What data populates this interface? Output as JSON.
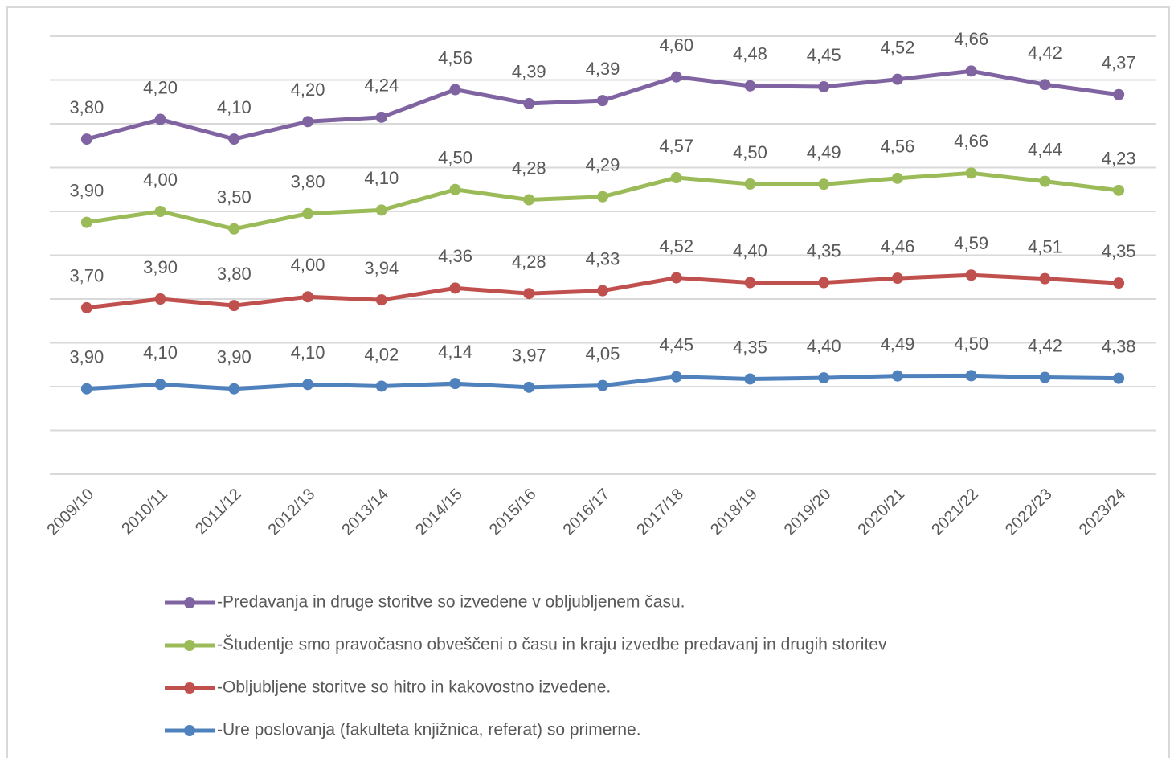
{
  "chart_data": {
    "type": "line",
    "stacked": true,
    "categories": [
      "2009/10",
      "2010/11",
      "2011/12",
      "2012/13",
      "2013/14",
      "2014/15",
      "2015/16",
      "2016/17",
      "2017/18",
      "2018/19",
      "2019/20",
      "2020/21",
      "2021/22",
      "2022/23",
      "2023/24"
    ],
    "ylim": [
      0,
      20
    ],
    "yticks": [
      0,
      2,
      4,
      6,
      8,
      10,
      12,
      14,
      16,
      18,
      20
    ],
    "show_ytick_labels": false,
    "grid": true,
    "legend": "bottom",
    "series": [
      {
        "name": "-Predavanja in druge storitve so izvedene v obljubljenem času.",
        "color": "#8064a2",
        "values": [
          3.8,
          4.2,
          4.1,
          4.2,
          4.24,
          4.56,
          4.39,
          4.39,
          4.6,
          4.48,
          4.45,
          4.52,
          4.66,
          4.42,
          4.37
        ],
        "value_labels": [
          "3,80",
          "4,20",
          "4,10",
          "4,20",
          "4,24",
          "4,56",
          "4,39",
          "4,39",
          "4,60",
          "4,48",
          "4,45",
          "4,52",
          "4,66",
          "4,42",
          "4,37"
        ]
      },
      {
        "name": "-Študentje smo pravočasno obveščeni o času in kraju izvedbe predavanj in drugih storitev",
        "color": "#9bbb59",
        "values": [
          3.9,
          4.0,
          3.5,
          3.8,
          4.1,
          4.5,
          4.28,
          4.29,
          4.57,
          4.5,
          4.49,
          4.56,
          4.66,
          4.44,
          4.23
        ],
        "value_labels": [
          "3,90",
          "4,00",
          "3,50",
          "3,80",
          "4,10",
          "4,50",
          "4,28",
          "4,29",
          "4,57",
          "4,50",
          "4,49",
          "4,56",
          "4,66",
          "4,44",
          "4,23"
        ]
      },
      {
        "name": "-Obljubljene storitve so hitro in kakovostno izvedene.",
        "color": "#c0504d",
        "values": [
          3.7,
          3.9,
          3.8,
          4.0,
          3.94,
          4.36,
          4.28,
          4.33,
          4.52,
          4.4,
          4.35,
          4.46,
          4.59,
          4.51,
          4.35
        ],
        "value_labels": [
          "3,70",
          "3,90",
          "3,80",
          "4,00",
          "3,94",
          "4,36",
          "4,28",
          "4,33",
          "4,52",
          "4,40",
          "4,35",
          "4,46",
          "4,59",
          "4,51",
          "4,35"
        ]
      },
      {
        "name": "-Ure poslovanja (fakulteta knjižnica, referat) so primerne.",
        "color": "#4f81bd",
        "values": [
          3.9,
          4.1,
          3.9,
          4.1,
          4.02,
          4.14,
          3.97,
          4.05,
          4.45,
          4.35,
          4.4,
          4.49,
          4.5,
          4.42,
          4.38
        ],
        "value_labels": [
          "3,90",
          "4,10",
          "3,90",
          "4,10",
          "4,02",
          "4,14",
          "3,97",
          "4,05",
          "4,45",
          "4,35",
          "4,40",
          "4,49",
          "4,50",
          "4,42",
          "4,38"
        ]
      }
    ]
  }
}
